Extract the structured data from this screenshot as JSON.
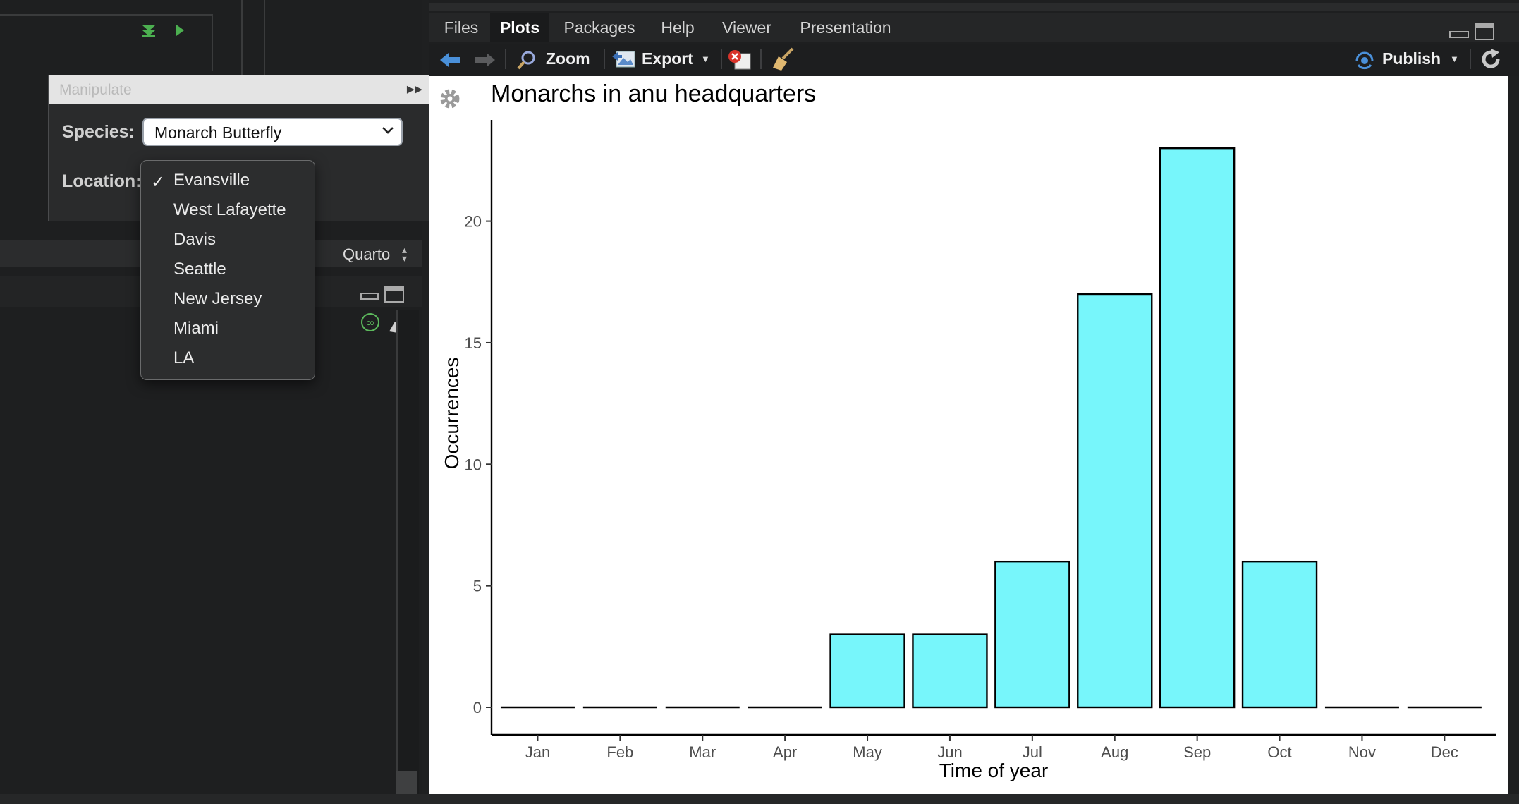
{
  "manipulate": {
    "title": "Manipulate",
    "species_label": "Species:",
    "species_value": "Monarch Butterfly",
    "location_label": "Location:",
    "location_selected": "Evansville",
    "location_options": [
      "Evansville",
      "West Lafayette",
      "Davis",
      "Seattle",
      "New Jersey",
      "Miami",
      "LA"
    ]
  },
  "editor": {
    "format_selector": "Quarto"
  },
  "plots_pane": {
    "tabs": [
      "Files",
      "Plots",
      "Packages",
      "Help",
      "Viewer",
      "Presentation"
    ],
    "active_tab": "Plots",
    "toolbar": {
      "zoom": "Zoom",
      "export": "Export",
      "publish": "Publish"
    }
  },
  "colors": {
    "bar_fill": "#77f6fb",
    "background_dark": "#1f2021",
    "run_green": "#4caf50"
  },
  "chart_data": {
    "type": "bar",
    "title": "Monarchs in anu headquarters",
    "xlabel": "Time of year",
    "ylabel": "Occurrences",
    "categories": [
      "Jan",
      "Feb",
      "Mar",
      "Apr",
      "May",
      "Jun",
      "Jul",
      "Aug",
      "Sep",
      "Oct",
      "Nov",
      "Dec"
    ],
    "values": [
      0,
      0,
      0,
      0,
      3,
      3,
      6,
      17,
      23,
      6,
      0,
      0
    ],
    "yticks": [
      0,
      5,
      10,
      15,
      20
    ],
    "ylim": [
      0,
      24
    ],
    "grid": false
  }
}
